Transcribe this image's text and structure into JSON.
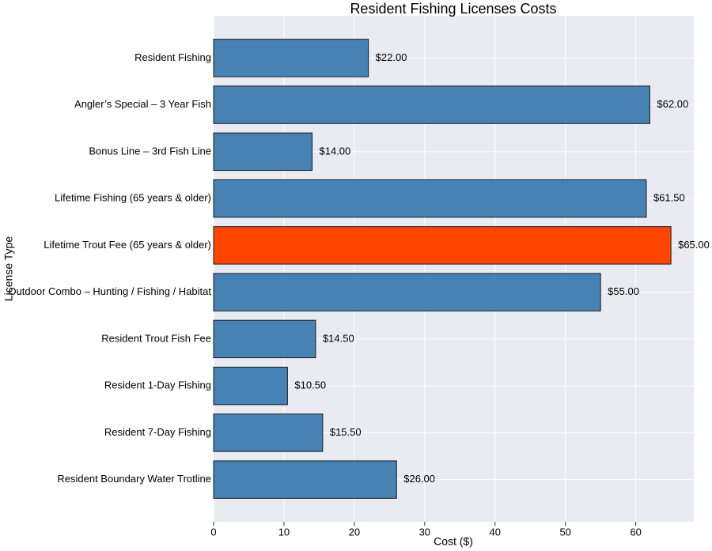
{
  "chart_data": {
    "type": "barh",
    "title": "Resident Fishing Licenses Costs",
    "x_label": "Cost ($)",
    "y_label": "License Type",
    "categories": [
      "Resident Fishing",
      "Angler’s Special – 3 Year Fish",
      "Bonus Line – 3rd Fish Line",
      "Lifetime Fishing (65 years & older)",
      "Lifetime Trout Fee (65 years & older)",
      "Outdoor Combo – Hunting / Fishing / Habitat",
      "Resident Trout Fish Fee",
      "Resident 1-Day Fishing",
      "Resident 7-Day Fishing",
      "Resident Boundary Water Trotline"
    ],
    "values": [
      22,
      62,
      14,
      61.5,
      65,
      55,
      14.5,
      10.5,
      15.5,
      26
    ],
    "value_labels": [
      "$22.00",
      "$62.00",
      "$14.00",
      "$61.50",
      "$65.00",
      "$55.00",
      "$14.50",
      "$10.50",
      "$15.50",
      "$26.00"
    ],
    "colors": [
      "#4682b4",
      "#4682b4",
      "#4682b4",
      "#4682b4",
      "#ff4500",
      "#4682b4",
      "#4682b4",
      "#4682b4",
      "#4682b4",
      "#4682b4"
    ],
    "xlim": [
      0,
      68.25
    ],
    "xticks": [
      0,
      10,
      20,
      30,
      40,
      50,
      60
    ],
    "grid": true
  }
}
